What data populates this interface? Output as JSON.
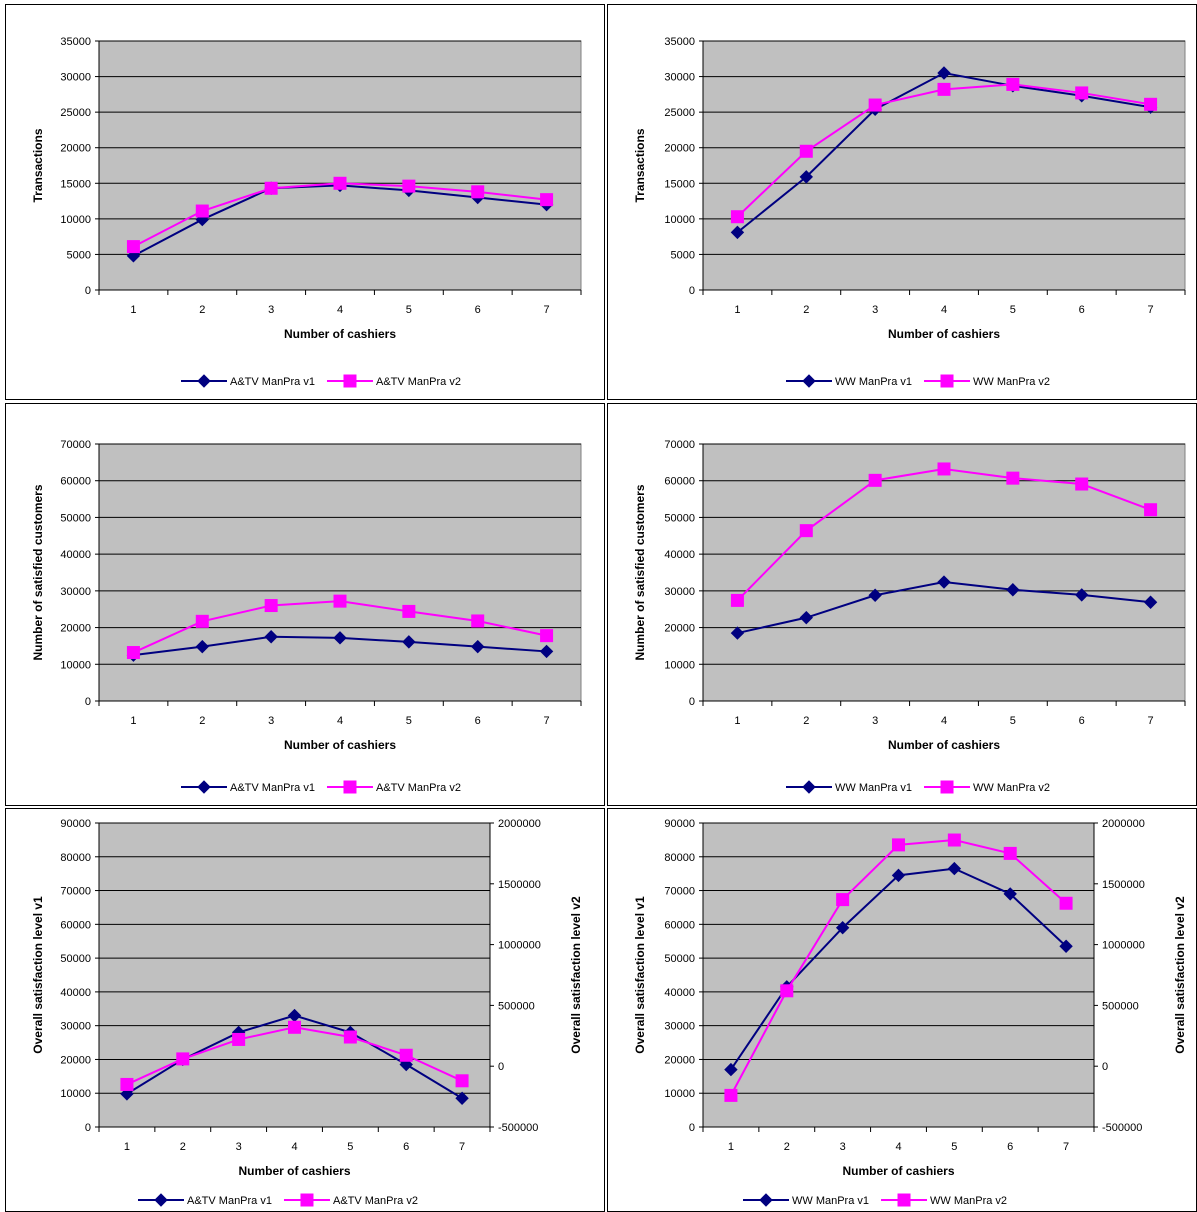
{
  "chart_data": [
    {
      "type": "line",
      "xlabel": "Number of cashiers",
      "ylabel": "Transactions",
      "x": [
        1,
        2,
        3,
        4,
        5,
        6,
        7
      ],
      "ylim": [
        0,
        35000
      ],
      "yticks": [
        0,
        5000,
        10000,
        15000,
        20000,
        25000,
        30000,
        35000
      ],
      "ytick_labels": [
        "0",
        "5000",
        "10000",
        "15000",
        "20000",
        "25000",
        "30000",
        "35000"
      ],
      "series": [
        {
          "name": "A&TV ManPra v1",
          "values": [
            4800,
            9900,
            14300,
            14700,
            14000,
            13000,
            12000
          ],
          "color": "#000080",
          "marker": "diamond"
        },
        {
          "name": "A&TV ManPra v2",
          "values": [
            6100,
            11100,
            14300,
            15000,
            14600,
            13800,
            12700
          ],
          "color": "#ff00ff",
          "marker": "square"
        }
      ],
      "grid": "horizontal",
      "legend": "bottom"
    },
    {
      "type": "line",
      "xlabel": "Number of cashiers",
      "ylabel": "Transactions",
      "x": [
        1,
        2,
        3,
        4,
        5,
        6,
        7
      ],
      "ylim": [
        0,
        35000
      ],
      "yticks": [
        0,
        5000,
        10000,
        15000,
        20000,
        25000,
        30000,
        35000
      ],
      "ytick_labels": [
        "0",
        "5000",
        "10000",
        "15000",
        "20000",
        "25000",
        "30000",
        "35000"
      ],
      "series": [
        {
          "name": "WW ManPra v1",
          "values": [
            8100,
            15900,
            25400,
            30500,
            28700,
            27300,
            25700
          ],
          "color": "#000080",
          "marker": "diamond"
        },
        {
          "name": "WW ManPra v2",
          "values": [
            10300,
            19500,
            26000,
            28200,
            28900,
            27700,
            26100
          ],
          "color": "#ff00ff",
          "marker": "square"
        }
      ],
      "grid": "horizontal",
      "legend": "bottom"
    },
    {
      "type": "line",
      "xlabel": "Number of cashiers",
      "ylabel": "Number of satisfied customers",
      "x": [
        1,
        2,
        3,
        4,
        5,
        6,
        7
      ],
      "ylim": [
        0,
        70000
      ],
      "yticks": [
        0,
        10000,
        20000,
        30000,
        40000,
        50000,
        60000,
        70000
      ],
      "ytick_labels": [
        "0",
        "10000",
        "20000",
        "30000",
        "40000",
        "50000",
        "60000",
        "70000"
      ],
      "series": [
        {
          "name": "A&TV ManPra v1",
          "values": [
            12500,
            14800,
            17500,
            17200,
            16100,
            14800,
            13500
          ],
          "color": "#000080",
          "marker": "diamond"
        },
        {
          "name": "A&TV ManPra v2",
          "values": [
            13200,
            21700,
            26000,
            27200,
            24400,
            21800,
            17800
          ],
          "color": "#ff00ff",
          "marker": "square"
        }
      ],
      "grid": "horizontal",
      "legend": "bottom"
    },
    {
      "type": "line",
      "xlabel": "Number of cashiers",
      "ylabel": "Number of satisfied customers",
      "x": [
        1,
        2,
        3,
        4,
        5,
        6,
        7
      ],
      "ylim": [
        0,
        70000
      ],
      "yticks": [
        0,
        10000,
        20000,
        30000,
        40000,
        50000,
        60000,
        70000
      ],
      "ytick_labels": [
        "0",
        "10000",
        "20000",
        "30000",
        "40000",
        "50000",
        "60000",
        "70000"
      ],
      "series": [
        {
          "name": "WW ManPra v1",
          "values": [
            18500,
            22700,
            28800,
            32400,
            30300,
            28900,
            26900
          ],
          "color": "#000080",
          "marker": "diamond"
        },
        {
          "name": "WW ManPra v2",
          "values": [
            27400,
            46400,
            60100,
            63200,
            60700,
            59100,
            52100
          ],
          "color": "#ff00ff",
          "marker": "square"
        }
      ],
      "grid": "horizontal",
      "legend": "bottom"
    },
    {
      "type": "line",
      "xlabel": "Number of cashiers",
      "ylabel": "Overall satisfaction level v1",
      "ylabel_right": "Overall satisfaction level v2",
      "x": [
        1,
        2,
        3,
        4,
        5,
        6,
        7
      ],
      "ylim": [
        0,
        90000
      ],
      "yticks": [
        0,
        10000,
        20000,
        30000,
        40000,
        50000,
        60000,
        70000,
        80000,
        90000
      ],
      "ytick_labels": [
        "0",
        "10000",
        "20000",
        "30000",
        "40000",
        "50000",
        "60000",
        "70000",
        "80000",
        "90000"
      ],
      "ylim_right": [
        -500000,
        2000000
      ],
      "yticks_right": [
        -500000,
        0,
        500000,
        1000000,
        1500000,
        2000000
      ],
      "ytick_labels_right": [
        "-500000",
        "0",
        "500000",
        "1000000",
        "1500000",
        "2000000"
      ],
      "series": [
        {
          "name": "A&TV ManPra v1",
          "axis": "left",
          "values": [
            9800,
            20000,
            28000,
            33000,
            28000,
            18500,
            8500
          ],
          "color": "#000080",
          "marker": "diamond"
        },
        {
          "name": "A&TV ManPra v2",
          "axis": "right",
          "values": [
            -150000,
            60000,
            220000,
            320000,
            240000,
            90000,
            -120000
          ],
          "color": "#ff00ff",
          "marker": "square"
        }
      ],
      "grid": "horizontal",
      "legend": "bottom"
    },
    {
      "type": "line",
      "xlabel": "Number of cashiers",
      "ylabel": "Overall satisfaction level v1",
      "ylabel_right": "Overall satisfaction level v2",
      "x": [
        1,
        2,
        3,
        4,
        5,
        6,
        7
      ],
      "ylim": [
        0,
        90000
      ],
      "yticks": [
        0,
        10000,
        20000,
        30000,
        40000,
        50000,
        60000,
        70000,
        80000,
        90000
      ],
      "ytick_labels": [
        "0",
        "10000",
        "20000",
        "30000",
        "40000",
        "50000",
        "60000",
        "70000",
        "80000",
        "90000"
      ],
      "ylim_right": [
        -500000,
        2000000
      ],
      "yticks_right": [
        -500000,
        0,
        500000,
        1000000,
        1500000,
        2000000
      ],
      "ytick_labels_right": [
        "-500000",
        "0",
        "500000",
        "1000000",
        "1500000",
        "2000000"
      ],
      "series": [
        {
          "name": "WW ManPra v1",
          "axis": "left",
          "values": [
            17000,
            41500,
            59000,
            74500,
            76500,
            69000,
            53500
          ],
          "color": "#000080",
          "marker": "diamond"
        },
        {
          "name": "WW ManPra v2",
          "axis": "right",
          "values": [
            -240000,
            620000,
            1370000,
            1820000,
            1860000,
            1750000,
            1340000
          ],
          "color": "#ff00ff",
          "marker": "square"
        }
      ],
      "grid": "horizontal",
      "legend": "bottom"
    }
  ]
}
